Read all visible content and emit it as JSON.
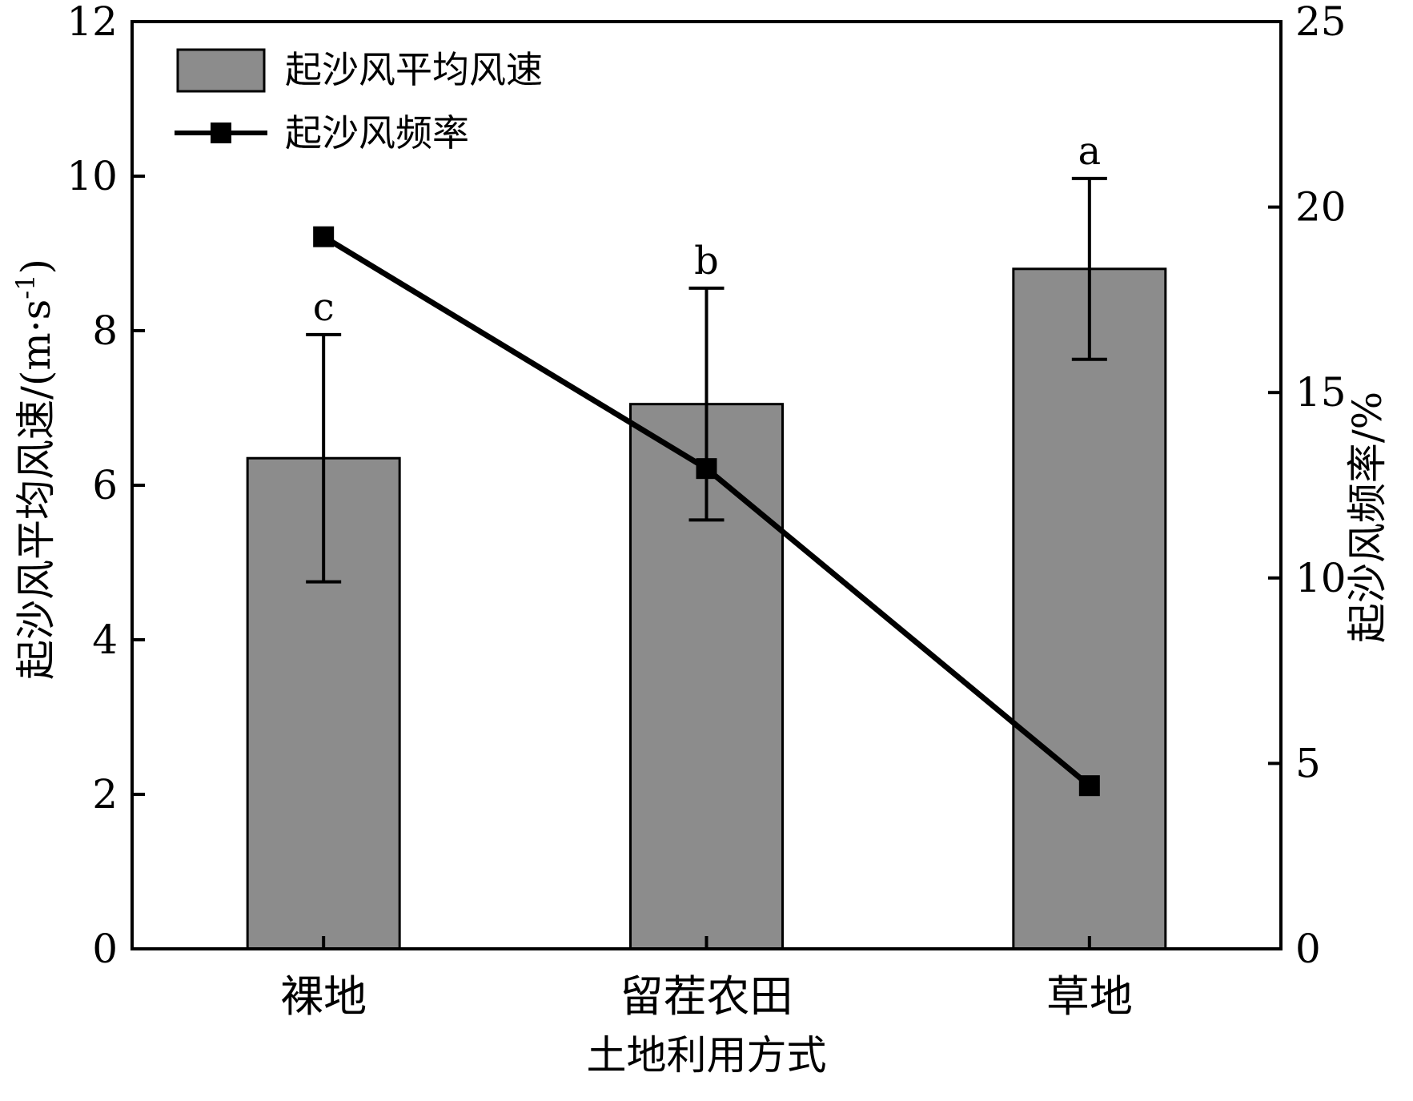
{
  "chart_data": {
    "type": "bar",
    "categories": [
      "裸地",
      "留茬农田",
      "草地"
    ],
    "series": [
      {
        "name": "起沙风平均风速",
        "type": "bar",
        "axis": "left",
        "values": [
          6.35,
          7.05,
          8.8
        ],
        "errors": [
          1.6,
          1.5,
          1.17
        ],
        "significance": [
          "c",
          "b",
          "a"
        ]
      },
      {
        "name": "起沙风频率",
        "type": "line",
        "axis": "right",
        "marker": "square",
        "values": [
          19.2,
          12.95,
          4.4
        ]
      }
    ],
    "xlabel": "土地利用方式",
    "ylabel": "起沙风平均风速/(m·s-1)",
    "ylabel_parts": {
      "main": "起沙风平均风速/(m·s",
      "sup": "-1",
      "close": ")"
    },
    "y2label": "起沙风频率/%",
    "ylim": [
      0,
      12
    ],
    "y2lim": [
      0,
      25
    ],
    "yticks": [
      "0",
      "2",
      "4",
      "6",
      "8",
      "10",
      "12"
    ],
    "y2ticks": [
      "0",
      "5",
      "10",
      "15",
      "20",
      "25"
    ],
    "legend": "top-left",
    "grid": false,
    "colors": {
      "bar": "#8c8c8c",
      "line": "#000000"
    }
  }
}
